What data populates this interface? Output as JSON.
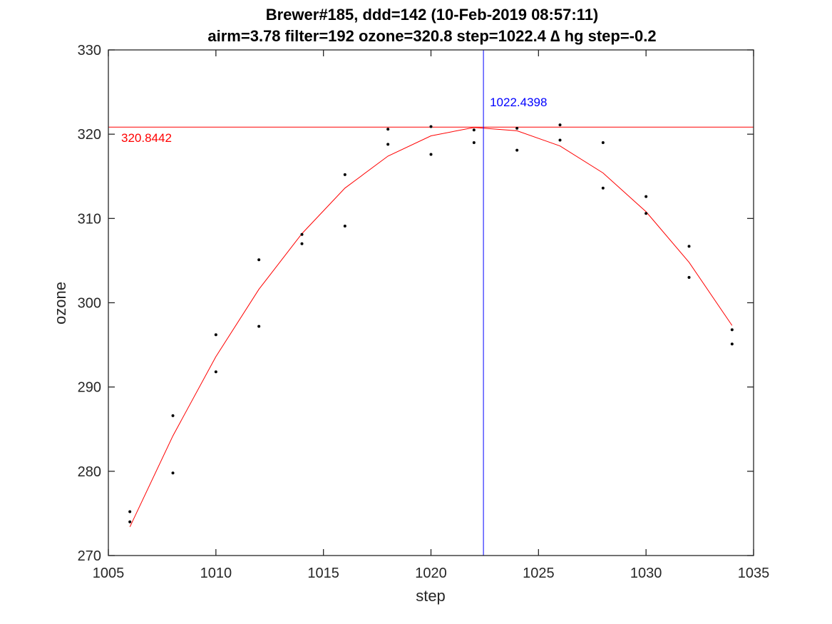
{
  "chart_data": {
    "type": "scatter",
    "title": "Brewer#185, ddd=142 (10-Feb-2019 08:57:11)",
    "subtitle": "airm=3.78  filter=192 ozone=320.8  step=1022.4 ∆ hg step=-0.2",
    "xlabel": "step",
    "ylabel": "ozone",
    "xlim": [
      1005,
      1035
    ],
    "ylim": [
      270,
      330
    ],
    "xticks": [
      1005,
      1010,
      1015,
      1020,
      1025,
      1030,
      1035
    ],
    "yticks": [
      270,
      280,
      290,
      300,
      310,
      320,
      330
    ],
    "grid": false,
    "colors": {
      "points": "#000000",
      "fit": "#ff0000",
      "vline": "#0000ff",
      "hline": "#ff0000"
    },
    "points": [
      [
        1006,
        275.2
      ],
      [
        1006,
        274.0
      ],
      [
        1008,
        286.6
      ],
      [
        1008,
        279.8
      ],
      [
        1010,
        296.2
      ],
      [
        1010,
        291.8
      ],
      [
        1012,
        305.1
      ],
      [
        1012,
        297.2
      ],
      [
        1014,
        308.1
      ],
      [
        1014,
        307.0
      ],
      [
        1016,
        315.2
      ],
      [
        1016,
        309.1
      ],
      [
        1018,
        320.6
      ],
      [
        1018,
        318.8
      ],
      [
        1020,
        320.9
      ],
      [
        1020,
        317.6
      ],
      [
        1022,
        320.5
      ],
      [
        1022,
        319.0
      ],
      [
        1024,
        320.7
      ],
      [
        1024,
        318.1
      ],
      [
        1026,
        321.1
      ],
      [
        1026,
        319.3
      ],
      [
        1028,
        319.0
      ],
      [
        1028,
        313.6
      ],
      [
        1030,
        312.6
      ],
      [
        1030,
        310.6
      ],
      [
        1032,
        306.7
      ],
      [
        1032,
        303.0
      ],
      [
        1034,
        296.8
      ],
      [
        1034,
        295.1
      ]
    ],
    "fit": {
      "x": [
        1006,
        1008,
        1010,
        1012,
        1014,
        1016,
        1018,
        1020,
        1022,
        1024,
        1026,
        1028,
        1030,
        1032,
        1034
      ],
      "y": [
        273.4,
        284.2,
        293.6,
        301.6,
        308.2,
        313.6,
        317.4,
        319.8,
        320.8,
        320.4,
        318.6,
        315.4,
        310.8,
        304.8,
        297.3
      ]
    },
    "vline": {
      "x": 1022.4398,
      "label": "1022.4398"
    },
    "hline": {
      "y": 320.8442,
      "label": "320.8442"
    }
  }
}
